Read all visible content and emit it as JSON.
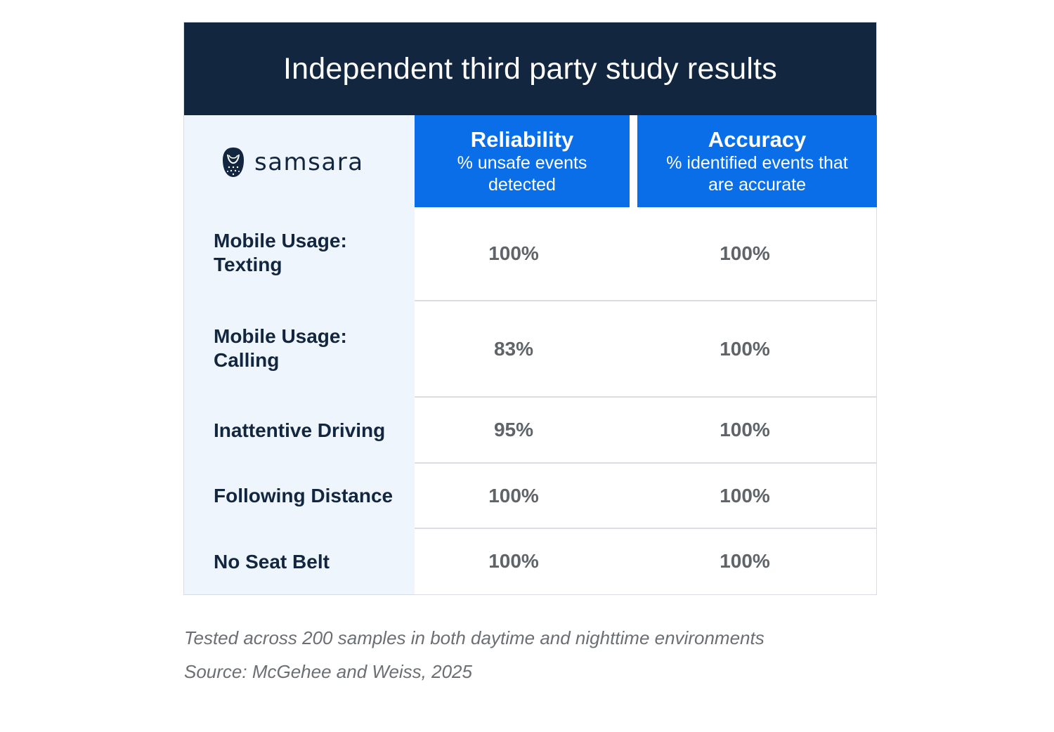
{
  "title": "Independent third party study results",
  "brand": {
    "name": "samsara",
    "icon": "owl-logo-icon"
  },
  "columns": [
    {
      "title": "Reliability",
      "subtitle": "% unsafe events detected"
    },
    {
      "title": "Accuracy",
      "subtitle": "% identified events that are accurate"
    }
  ],
  "rows": [
    {
      "label": "Mobile Usage: Texting",
      "reliability": "100%",
      "accuracy": "100%"
    },
    {
      "label": "Mobile Usage: Calling",
      "reliability": "83%",
      "accuracy": "100%"
    },
    {
      "label": "Inattentive Driving",
      "reliability": "95%",
      "accuracy": "100%"
    },
    {
      "label": "Following Distance",
      "reliability": "100%",
      "accuracy": "100%"
    },
    {
      "label": "No Seat Belt",
      "reliability": "100%",
      "accuracy": "100%"
    }
  ],
  "notes": [
    "Tested across 200 samples in both daytime and nighttime environments",
    "Source: McGehee and Weiss, 2025"
  ],
  "colors": {
    "title_bg": "#12263f",
    "header_bg": "#0a6ee8",
    "label_col_bg": "#eff5fd",
    "label_text": "#12263f",
    "value_text": "#5f6469"
  },
  "chart_data": {
    "type": "table",
    "title": "Independent third party study results",
    "columns": [
      "Reliability",
      "Accuracy"
    ],
    "column_subtitles": [
      "% unsafe events detected",
      "% identified events that are accurate"
    ],
    "categories": [
      "Mobile Usage: Texting",
      "Mobile Usage: Calling",
      "Inattentive Driving",
      "Following Distance",
      "No Seat Belt"
    ],
    "series": [
      {
        "name": "Reliability",
        "values": [
          100,
          83,
          95,
          100,
          100
        ]
      },
      {
        "name": "Accuracy",
        "values": [
          100,
          100,
          100,
          100,
          100
        ]
      }
    ],
    "unit": "%"
  }
}
